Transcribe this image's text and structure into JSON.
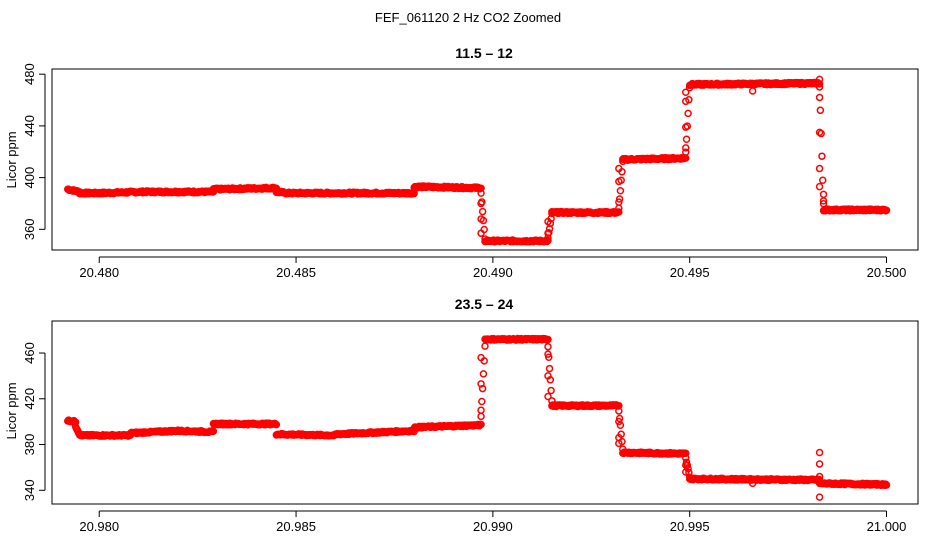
{
  "figure": {
    "title": "FEF_061120  2 Hz CO2 Zoomed"
  },
  "chart_data": [
    {
      "type": "scatter",
      "title": "11.5 – 12",
      "ylabel": "Licor ppm",
      "xlabel": "",
      "xlim": [
        20.4788,
        20.5008
      ],
      "ylim": [
        344,
        484
      ],
      "x_ticks": [
        20.48,
        20.485,
        20.49,
        20.495,
        20.5
      ],
      "x_tick_labels": [
        "20.480",
        "20.485",
        "20.490",
        "20.495",
        "20.500"
      ],
      "y_ticks": [
        360,
        400,
        440,
        480
      ],
      "y_tick_labels": [
        "360",
        "400",
        "440",
        "480"
      ],
      "marker_color": "#ff0000",
      "grid": false,
      "series": [
        {
          "segments": [
            {
              "x0": 20.4792,
              "x1": 20.4795,
              "y0": 391,
              "y1": 389
            },
            {
              "x0": 20.4795,
              "x1": 20.48,
              "y0": 388,
              "y1": 388
            },
            {
              "x0": 20.48,
              "x1": 20.4811,
              "y0": 388,
              "y1": 389
            },
            {
              "x0": 20.4811,
              "x1": 20.4829,
              "y0": 389,
              "y1": 389
            },
            {
              "x0": 20.4829,
              "x1": 20.4845,
              "y0": 391,
              "y1": 392
            },
            {
              "x0": 20.4845,
              "x1": 20.4848,
              "y0": 389,
              "y1": 388
            },
            {
              "x0": 20.4848,
              "x1": 20.4862,
              "y0": 388,
              "y1": 388
            },
            {
              "x0": 20.4862,
              "x1": 20.488,
              "y0": 388,
              "y1": 388
            },
            {
              "x0": 20.488,
              "x1": 20.4897,
              "y0": 393,
              "y1": 392
            },
            {
              "x0": 20.4897,
              "x1": 20.4898,
              "y0": 388,
              "y1": 352
            },
            {
              "x0": 20.4898,
              "x1": 20.4914,
              "y0": 351,
              "y1": 351
            },
            {
              "x0": 20.4914,
              "x1": 20.4915,
              "y0": 353,
              "y1": 372
            },
            {
              "x0": 20.4915,
              "x1": 20.4932,
              "y0": 373,
              "y1": 373
            },
            {
              "x0": 20.4932,
              "x1": 20.4933,
              "y0": 376,
              "y1": 412
            },
            {
              "x0": 20.4933,
              "x1": 20.4949,
              "y0": 414,
              "y1": 415
            },
            {
              "x0": 20.4949,
              "x1": 20.495,
              "y0": 420,
              "y1": 470
            },
            {
              "x0": 20.495,
              "x1": 20.4983,
              "y0": 472,
              "y1": 473
            },
            {
              "x0": 20.4983,
              "x1": 20.4984,
              "y0": 470,
              "y1": 380
            },
            {
              "x0": 20.4984,
              "x1": 20.5,
              "y0": 375,
              "y1": 375
            }
          ],
          "points": [
            {
              "x": 20.4897,
              "y": 380
            },
            {
              "x": 20.4897,
              "y": 368
            },
            {
              "x": 20.4897,
              "y": 357
            },
            {
              "x": 20.4914,
              "y": 357
            },
            {
              "x": 20.4914,
              "y": 366
            },
            {
              "x": 20.4932,
              "y": 381
            },
            {
              "x": 20.4932,
              "y": 397
            },
            {
              "x": 20.4932,
              "y": 407
            },
            {
              "x": 20.4949,
              "y": 423
            },
            {
              "x": 20.4949,
              "y": 439
            },
            {
              "x": 20.4949,
              "y": 459
            },
            {
              "x": 20.4949,
              "y": 466
            },
            {
              "x": 20.4983,
              "y": 476
            },
            {
              "x": 20.4983,
              "y": 462
            },
            {
              "x": 20.4983,
              "y": 435
            },
            {
              "x": 20.4983,
              "y": 407
            },
            {
              "x": 20.4983,
              "y": 393
            },
            {
              "x": 20.4984,
              "y": 387
            },
            {
              "x": 20.4984,
              "y": 382
            },
            {
              "x": 20.4966,
              "y": 467
            }
          ]
        }
      ]
    },
    {
      "type": "scatter",
      "title": "23.5 – 24",
      "ylabel": "Licor ppm",
      "xlabel": "",
      "xlim": [
        20.9788,
        21.0008
      ],
      "ylim": [
        328,
        488
      ],
      "x_ticks": [
        20.98,
        20.985,
        20.99,
        20.995,
        21.0
      ],
      "x_tick_labels": [
        "20.980",
        "20.985",
        "20.990",
        "20.995",
        "21.000"
      ],
      "y_ticks": [
        340,
        380,
        420,
        460
      ],
      "y_tick_labels": [
        "340",
        "380",
        "420",
        "460"
      ],
      "marker_color": "#ff0000",
      "grid": false,
      "series": [
        {
          "segments": [
            {
              "x0": 20.9792,
              "x1": 20.9794,
              "y0": 401,
              "y1": 400
            },
            {
              "x0": 20.9794,
              "x1": 20.9795,
              "y0": 396,
              "y1": 389
            },
            {
              "x0": 20.9795,
              "x1": 20.9808,
              "y0": 388,
              "y1": 388
            },
            {
              "x0": 20.9808,
              "x1": 20.982,
              "y0": 390,
              "y1": 392
            },
            {
              "x0": 20.982,
              "x1": 20.9829,
              "y0": 392,
              "y1": 391
            },
            {
              "x0": 20.9829,
              "x1": 20.9845,
              "y0": 398,
              "y1": 398
            },
            {
              "x0": 20.9845,
              "x1": 20.986,
              "y0": 389,
              "y1": 388
            },
            {
              "x0": 20.986,
              "x1": 20.988,
              "y0": 389,
              "y1": 392
            },
            {
              "x0": 20.988,
              "x1": 20.9897,
              "y0": 395,
              "y1": 397
            },
            {
              "x0": 20.9897,
              "x1": 20.9898,
              "y0": 405,
              "y1": 466
            },
            {
              "x0": 20.9898,
              "x1": 20.9914,
              "y0": 472,
              "y1": 472
            },
            {
              "x0": 20.9914,
              "x1": 20.9915,
              "y0": 466,
              "y1": 418
            },
            {
              "x0": 20.9915,
              "x1": 20.9932,
              "y0": 414,
              "y1": 414
            },
            {
              "x0": 20.9932,
              "x1": 20.9933,
              "y0": 410,
              "y1": 376
            },
            {
              "x0": 20.9933,
              "x1": 20.9949,
              "y0": 373,
              "y1": 372
            },
            {
              "x0": 20.9949,
              "x1": 20.995,
              "y0": 368,
              "y1": 352
            },
            {
              "x0": 20.995,
              "x1": 20.9983,
              "y0": 350,
              "y1": 349
            },
            {
              "x0": 20.9983,
              "x1": 21.0,
              "y0": 346,
              "y1": 345
            }
          ],
          "points": [
            {
              "x": 20.9897,
              "y": 410
            },
            {
              "x": 20.9897,
              "y": 433
            },
            {
              "x": 20.9897,
              "y": 456
            },
            {
              "x": 20.9914,
              "y": 459
            },
            {
              "x": 20.9914,
              "y": 440
            },
            {
              "x": 20.9914,
              "y": 422
            },
            {
              "x": 20.9932,
              "y": 400
            },
            {
              "x": 20.9932,
              "y": 386
            },
            {
              "x": 20.9932,
              "y": 381
            },
            {
              "x": 20.9949,
              "y": 362
            },
            {
              "x": 20.9949,
              "y": 356
            },
            {
              "x": 20.9983,
              "y": 373
            },
            {
              "x": 20.9983,
              "y": 363
            },
            {
              "x": 20.9983,
              "y": 352
            },
            {
              "x": 20.9983,
              "y": 334
            },
            {
              "x": 20.9966,
              "y": 346
            }
          ]
        }
      ]
    }
  ]
}
